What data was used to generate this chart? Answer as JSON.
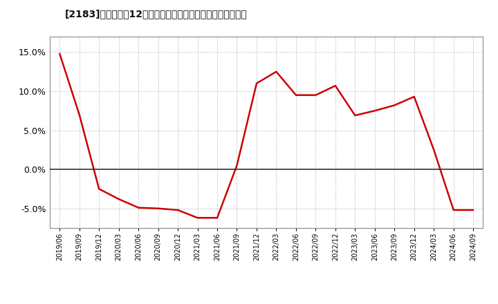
{
  "title": "[2183]　売上高の12か月移動合計の対前年同期増減率の推移",
  "line_color": "#cc0000",
  "background_color": "#ffffff",
  "plot_bg_color": "#ffffff",
  "grid_color": "#aaaaaa",
  "zero_line_color": "#333333",
  "ylim": [
    -0.075,
    0.17
  ],
  "yticks": [
    -0.05,
    0.0,
    0.05,
    0.1,
    0.15
  ],
  "dates": [
    "2019/06",
    "2019/09",
    "2019/12",
    "2020/03",
    "2020/06",
    "2020/09",
    "2020/12",
    "2021/03",
    "2021/06",
    "2021/09",
    "2021/12",
    "2022/03",
    "2022/06",
    "2022/09",
    "2022/12",
    "2023/03",
    "2023/06",
    "2023/09",
    "2023/12",
    "2024/03",
    "2024/06",
    "2024/09"
  ],
  "values": [
    0.148,
    0.07,
    -0.025,
    -0.038,
    -0.049,
    -0.05,
    -0.052,
    -0.062,
    -0.062,
    0.005,
    0.11,
    0.125,
    0.095,
    0.095,
    0.107,
    0.069,
    0.075,
    0.082,
    0.093,
    0.025,
    -0.052,
    -0.052
  ]
}
